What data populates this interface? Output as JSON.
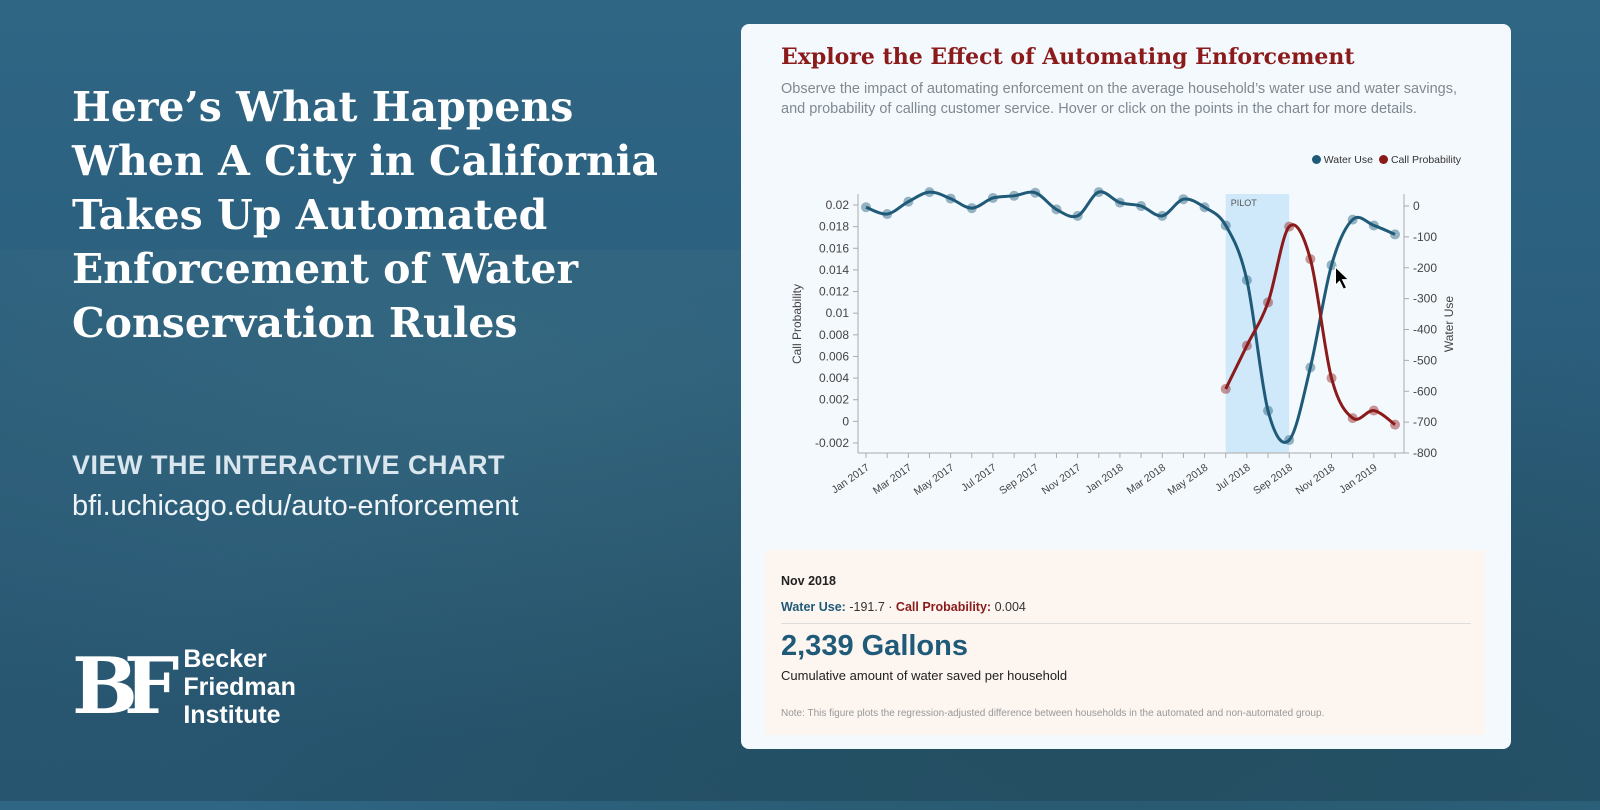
{
  "headline": "Here’s What Happens When A City in California Takes Up Automated Enforcement of Water Conservation Rules",
  "cta": "VIEW THE INTERACTIVE CHART",
  "url": "bfi.uchicago.edu/auto-enforcement",
  "logo": {
    "mark": "BF",
    "line1": "Becker",
    "line2": "Friedman",
    "line3": "Institute"
  },
  "card": {
    "title": "Explore the Effect of Automating Enforcement",
    "description": "Observe the impact of automating enforcement on the average household’s water use and water savings, and probability of calling customer service. Hover or click on the points in the chart for more details."
  },
  "detail": {
    "month": "Nov 2018",
    "water_label": "Water Use:",
    "water_value": "-191.7",
    "sep": "·",
    "call_label": "Call Probability:",
    "call_value": "0.004",
    "gallons": "2,339 Gallons",
    "gallons_caption": "Cumulative amount of water saved per household",
    "note": "Note: This figure plots the regression-adjusted difference between households in the automated and non-automated group."
  },
  "colors": {
    "water": "#1f5a78",
    "call": "#8b1a1a",
    "pilot": "#cfe8fa"
  },
  "chart_data": {
    "type": "line",
    "x": [
      "Jan 2017",
      "Feb 2017",
      "Mar 2017",
      "Apr 2017",
      "May 2017",
      "Jun 2017",
      "Jul 2017",
      "Aug 2017",
      "Sep 2017",
      "Oct 2017",
      "Nov 2017",
      "Dec 2017",
      "Jan 2018",
      "Feb 2018",
      "Mar 2018",
      "Apr 2018",
      "May 2018",
      "Jun 2018",
      "Jul 2018",
      "Aug 2018",
      "Sep 2018",
      "Oct 2018",
      "Nov 2018",
      "Dec 2018",
      "Jan 2019",
      "Feb 2019"
    ],
    "x_tick_labels": [
      "Jan 2017",
      "Mar 2017",
      "May 2017",
      "Jul 2017",
      "Sep 2017",
      "Nov 2017",
      "Jan 2018",
      "Mar 2018",
      "May 2018",
      "Jul 2018",
      "Sep 2018",
      "Nov 2018",
      "Jan 2019"
    ],
    "series": [
      {
        "name": "Water Use",
        "axis": "right",
        "values": [
          -4,
          -26,
          14,
          45,
          24,
          -7,
          26,
          33,
          43,
          -11,
          -32,
          45,
          11,
          0,
          -32,
          22,
          -4,
          -63,
          -240,
          -663,
          -758,
          -523,
          -191.7,
          -44,
          -63,
          -92
        ]
      },
      {
        "name": "Call Probability",
        "axis": "left",
        "values": [
          null,
          null,
          null,
          null,
          null,
          null,
          null,
          null,
          null,
          null,
          null,
          null,
          null,
          null,
          null,
          null,
          null,
          0.003,
          0.007,
          0.011,
          0.018,
          0.015,
          0.004,
          0.0003,
          0.001,
          -0.0003
        ]
      }
    ],
    "ylabel_left": "Call Probability",
    "ylim_left": [
      -0.003,
      0.021
    ],
    "yticks_left": [
      "0.02",
      "0.018",
      "0.016",
      "0.014",
      "0.012",
      "0.01",
      "0.008",
      "0.006",
      "0.004",
      "0.002",
      "0",
      "-0.002"
    ],
    "ylabel_right": "Water Use",
    "ylim_right": [
      -800,
      40
    ],
    "yticks_right": [
      "0",
      "-100",
      "-200",
      "-300",
      "-400",
      "-500",
      "-600",
      "-700",
      "-800"
    ],
    "band": {
      "label": "PILOT",
      "from": "Jun 2018",
      "to": "Sep 2018"
    },
    "legend": "top-right",
    "grid": false
  }
}
